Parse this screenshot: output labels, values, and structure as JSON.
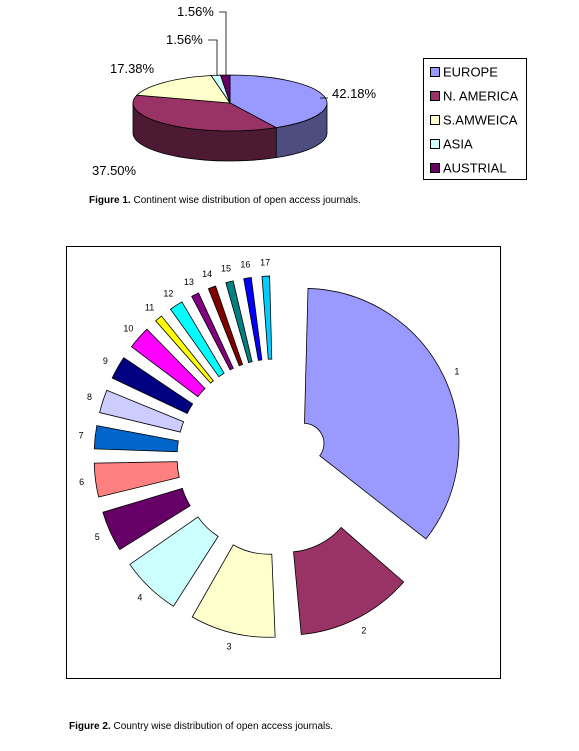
{
  "chart_data": [
    {
      "type": "pie",
      "three_d": true,
      "title": "",
      "legend_position": "right",
      "slices": [
        {
          "label": "EUROPE",
          "value": 42.18,
          "value_label": "42.18%",
          "color": "#9999ff",
          "side_color": "#4d4d80"
        },
        {
          "label": "N. AMERICA",
          "value": 37.5,
          "value_label": "37.50%",
          "color": "#993366",
          "side_color": "#4d1a33"
        },
        {
          "label": "S.AMWEICA",
          "value": 17.38,
          "value_label": "17.38%",
          "color": "#ffffcc",
          "side_color": "#808066"
        },
        {
          "label": "ASIA",
          "value": 1.56,
          "value_label": "1.56%",
          "color": "#ccffff",
          "side_color": "#668080"
        },
        {
          "label": "AUSTRIAL",
          "value": 1.56,
          "value_label": "1.56%",
          "color": "#660066",
          "side_color": "#330033"
        }
      ]
    },
    {
      "type": "pie",
      "exploded": true,
      "title": "",
      "slices": [
        {
          "label": "1",
          "value": 35.6,
          "color": "#9999ff"
        },
        {
          "label": "2",
          "value": 12.8,
          "color": "#993366"
        },
        {
          "label": "3",
          "value": 9.6,
          "color": "#ffffcc"
        },
        {
          "label": "4",
          "value": 7.0,
          "color": "#ccffff"
        },
        {
          "label": "5",
          "value": 5.0,
          "color": "#660066"
        },
        {
          "label": "6",
          "value": 4.3,
          "color": "#ff8080"
        },
        {
          "label": "7",
          "value": 3.2,
          "color": "#0066cc"
        },
        {
          "label": "8",
          "value": 3.2,
          "color": "#ccccff"
        },
        {
          "label": "9",
          "value": 3.2,
          "color": "#000080"
        },
        {
          "label": "10",
          "value": 3.2,
          "color": "#ff00ff"
        },
        {
          "label": "11",
          "value": 1.6,
          "color": "#ffff00"
        },
        {
          "label": "12",
          "value": 2.2,
          "color": "#00ffff"
        },
        {
          "label": "13",
          "value": 1.6,
          "color": "#800080"
        },
        {
          "label": "14",
          "value": 1.6,
          "color": "#800000"
        },
        {
          "label": "15",
          "value": 1.6,
          "color": "#008080"
        },
        {
          "label": "16",
          "value": 1.6,
          "color": "#0000ff"
        },
        {
          "label": "17",
          "value": 1.6,
          "color": "#00ccff"
        }
      ]
    }
  ],
  "captions": {
    "fig1_bold": "Figure 1.",
    "fig1_text": " Continent wise distribution of open access journals.",
    "fig2_bold": "Figure 2.",
    "fig2_text": " Country wise distribution of open access journals."
  }
}
